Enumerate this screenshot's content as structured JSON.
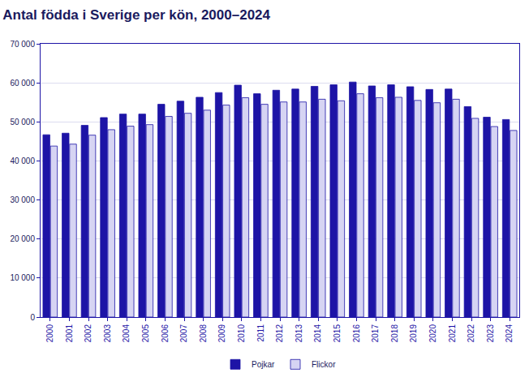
{
  "chart_data": {
    "type": "bar",
    "title": "Antal födda i Sverige per kön, 2000–2024",
    "categories": [
      "2000",
      "2001",
      "2002",
      "2003",
      "2004",
      "2005",
      "2006",
      "2007",
      "2008",
      "2009",
      "2010",
      "2011",
      "2012",
      "2013",
      "2014",
      "2015",
      "2016",
      "2017",
      "2018",
      "2019",
      "2020",
      "2021",
      "2022",
      "2023",
      "2024"
    ],
    "series": [
      {
        "name": "Pojkar",
        "color": "#1d14a6",
        "values": [
          46700,
          47100,
          49100,
          51100,
          52000,
          52000,
          54500,
          55300,
          56300,
          57500,
          59400,
          57200,
          58100,
          58400,
          59100,
          59500,
          60200,
          59200,
          59500,
          59000,
          58300,
          58400,
          53900,
          51200,
          50600
        ]
      },
      {
        "name": "Flickor",
        "color": "#d6d4f3",
        "values": [
          43800,
          44300,
          46600,
          48000,
          48900,
          49300,
          51400,
          52200,
          53000,
          54300,
          56200,
          54500,
          55100,
          55100,
          55800,
          55400,
          57200,
          56200,
          56300,
          55500,
          54900,
          55800,
          50900,
          48800,
          47800
        ]
      }
    ],
    "ylim": [
      0,
      70000
    ],
    "yticks": [
      0,
      {
        "value": 10000,
        "label": "10 000"
      },
      {
        "value": 20000,
        "label": "20 000"
      },
      {
        "value": 30000,
        "label": "30 000"
      },
      {
        "value": 40000,
        "label": "40 000"
      },
      {
        "value": 50000,
        "label": "50 000"
      },
      {
        "value": 60000,
        "label": "60 000"
      },
      {
        "value": 70000,
        "label": "70 000"
      }
    ],
    "grid": true,
    "legend": "bottom"
  }
}
